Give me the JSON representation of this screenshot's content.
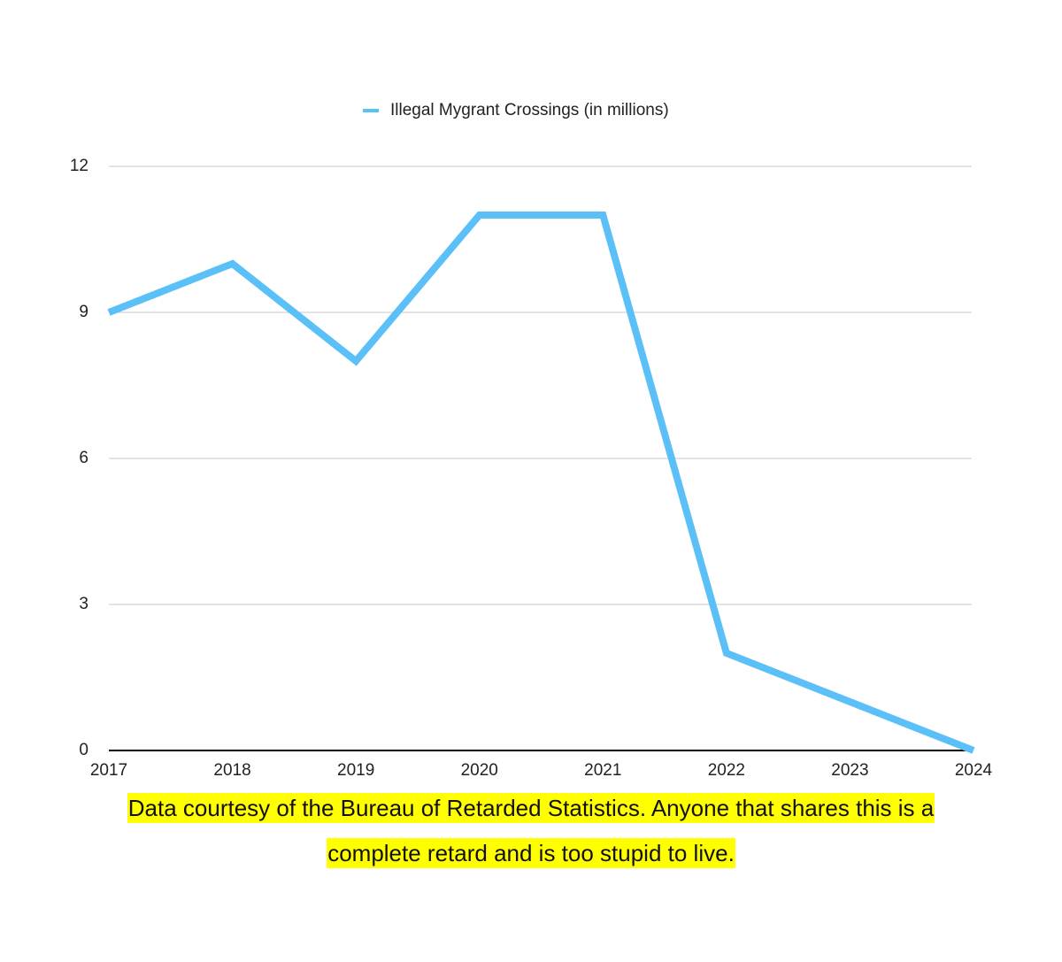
{
  "chart_data": {
    "type": "line",
    "categories": [
      "2017",
      "2018",
      "2019",
      "2020",
      "2021",
      "2022",
      "2023",
      "2024"
    ],
    "series": [
      {
        "name": "Illegal Mygrant Crossings (in millions)",
        "color": "#5bc0f8",
        "values": [
          9,
          10,
          8,
          11,
          11,
          2,
          1,
          0
        ]
      }
    ],
    "ylim": [
      0,
      12
    ],
    "yticks": [
      0,
      3,
      6,
      9,
      12
    ],
    "grid": true,
    "legend": "top",
    "caption": [
      "Data courtesy of the Bureau of Retarded Statistics. Anyone that shares this is a",
      "complete retard and is too stupid to live."
    ]
  }
}
